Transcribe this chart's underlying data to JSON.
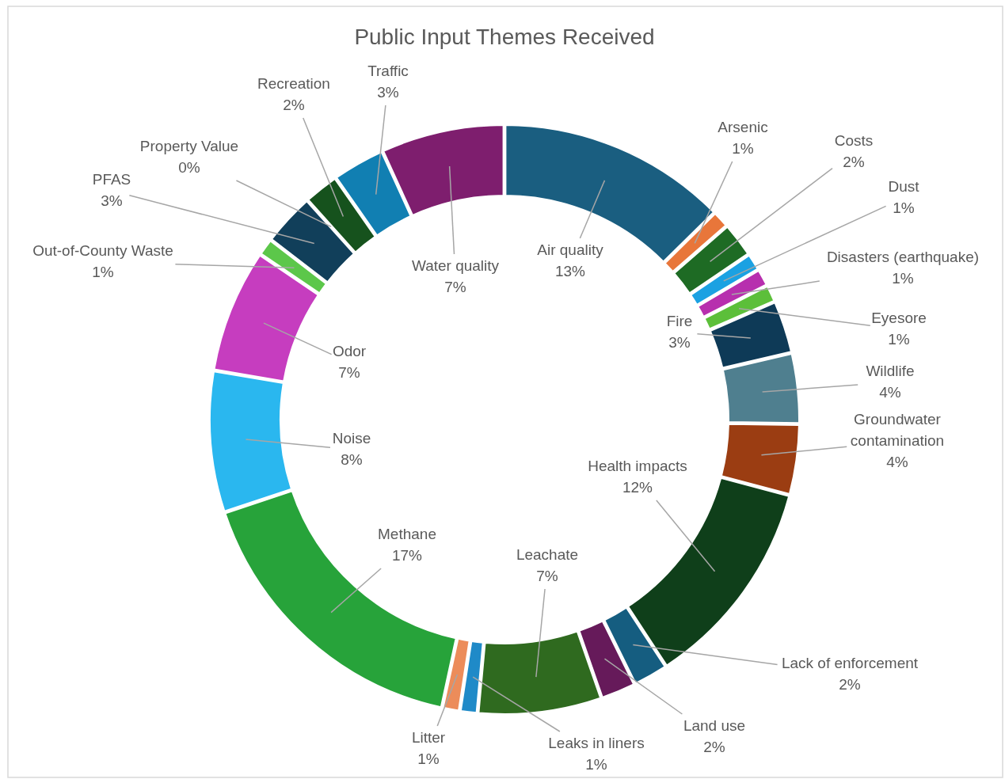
{
  "chart_data": {
    "type": "donut",
    "title": "Public Input Themes Received",
    "categories": [
      "Air quality",
      "Arsenic",
      "Costs",
      "Dust",
      "Disasters (earthquake)",
      "Eyesore",
      "Fire",
      "Wildlife",
      "Groundwater contamination",
      "Health impacts",
      "Lack of enforcement",
      "Land use",
      "Leachate",
      "Leaks in liners",
      "Litter",
      "Methane",
      "Noise",
      "Odor",
      "Out-of-County Waste",
      "PFAS",
      "Property Value",
      "Recreation",
      "Traffic",
      "Water quality"
    ],
    "values": [
      13,
      1,
      2,
      1,
      1,
      1,
      3,
      4,
      4,
      12,
      2,
      2,
      7,
      1,
      1,
      17,
      8,
      7,
      1,
      3,
      0,
      2,
      3,
      7
    ],
    "colors": [
      "#1a5e80",
      "#e8763a",
      "#1e6b24",
      "#1ba1e2",
      "#b72fae",
      "#5cbf3a",
      "#0e3a57",
      "#4f7f8f",
      "#9b3d12",
      "#0f3f1a",
      "#155d80",
      "#661a5a",
      "#2f6a1f",
      "#1f8ac8",
      "#ec8c5a",
      "#27a33a",
      "#2ab7ef",
      "#c63dbf",
      "#5cc74a",
      "#113f5a",
      "#d4572a",
      "#16521d",
      "#117fb2",
      "#7e1e6e"
    ],
    "value_labels": [
      "13%",
      "1%",
      "2%",
      "1%",
      "1%",
      "1%",
      "3%",
      "4%",
      "4%",
      "12%",
      "2%",
      "2%",
      "7%",
      "1%",
      "1%",
      "17%",
      "8%",
      "7%",
      "1%",
      "3%",
      "0%",
      "2%",
      "3%",
      "7%"
    ]
  }
}
